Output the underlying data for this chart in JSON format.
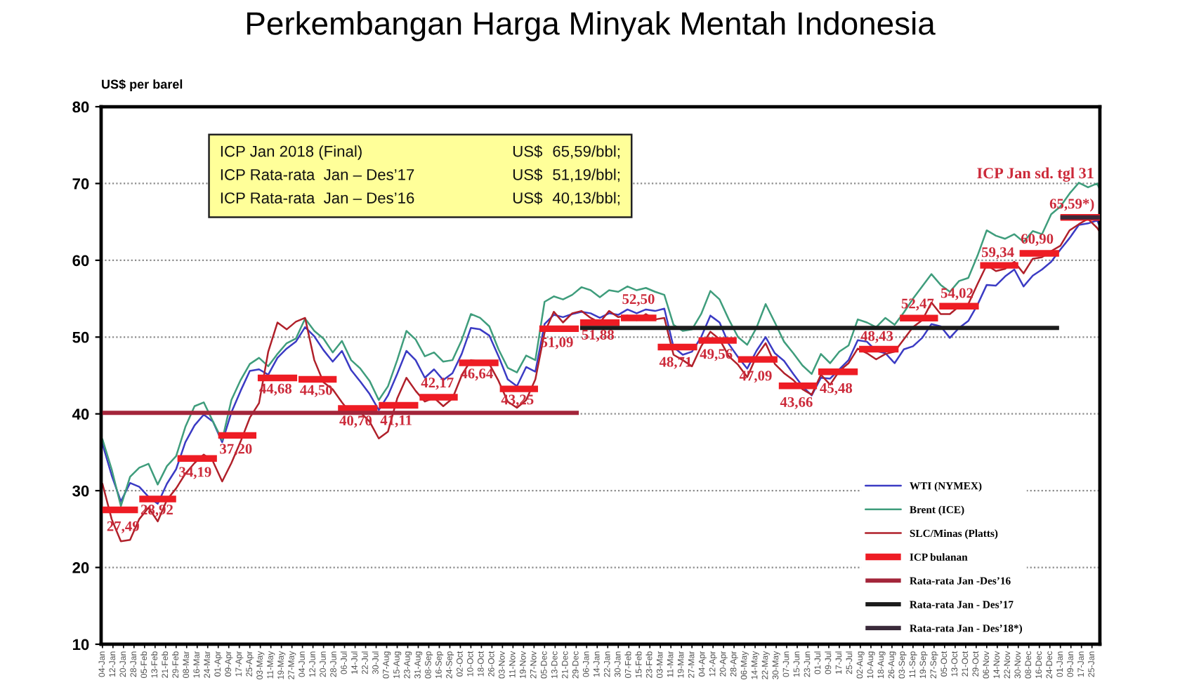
{
  "chart_data": {
    "type": "line",
    "title": "Perkembangan Harga Minyak Mentah Indonesia",
    "ylabel": "US$ per barel",
    "annotations": [
      "ICP Jan 2018 (Final)",
      "US$",
      "65,59/bbl;",
      "ICP Rata-rata  Jan – Des’17",
      "US$",
      "51,19/bbl;",
      "ICP Rata-rata  Jan – Des’16",
      "US$",
      "40,13/bbl;",
      {
        "text": "ICP Jan sd. tgl 31",
        "x": "2018-01-16",
        "y": 65.59
      }
    ],
    "x": [
      "2016-01-04",
      "2016-01-11",
      "2016-01-18",
      "2016-01-25",
      "2016-02-01",
      "2016-02-08",
      "2016-02-15",
      "2016-02-22",
      "2016-02-29",
      "2016-03-07",
      "2016-03-14",
      "2016-03-21",
      "2016-03-28",
      "2016-04-04",
      "2016-04-11",
      "2016-04-18",
      "2016-04-25",
      "2016-05-02",
      "2016-05-09",
      "2016-05-16",
      "2016-05-23",
      "2016-05-30",
      "2016-06-06",
      "2016-06-13",
      "2016-06-20",
      "2016-06-27",
      "2016-07-04",
      "2016-07-11",
      "2016-07-18",
      "2016-07-25",
      "2016-08-01",
      "2016-08-08",
      "2016-08-15",
      "2016-08-22",
      "2016-08-29",
      "2016-09-05",
      "2016-09-12",
      "2016-09-19",
      "2016-09-26",
      "2016-10-03",
      "2016-10-10",
      "2016-10-17",
      "2016-10-24",
      "2016-10-31",
      "2016-11-07",
      "2016-11-14",
      "2016-11-21",
      "2016-11-28",
      "2016-12-05",
      "2016-12-12",
      "2016-12-19",
      "2016-12-26",
      "2017-01-02",
      "2017-01-09",
      "2017-01-16",
      "2017-01-23",
      "2017-01-30",
      "2017-02-06",
      "2017-02-13",
      "2017-02-20",
      "2017-02-27",
      "2017-03-06",
      "2017-03-13",
      "2017-03-20",
      "2017-03-27",
      "2017-04-03",
      "2017-04-10",
      "2017-04-17",
      "2017-04-24",
      "2017-05-01",
      "2017-05-08",
      "2017-05-15",
      "2017-05-22",
      "2017-05-29",
      "2017-06-05",
      "2017-06-12",
      "2017-06-19",
      "2017-06-26",
      "2017-07-03",
      "2017-07-10",
      "2017-07-17",
      "2017-07-24",
      "2017-07-31",
      "2017-08-07",
      "2017-08-14",
      "2017-08-21",
      "2017-08-28",
      "2017-09-04",
      "2017-09-11",
      "2017-09-18",
      "2017-09-25",
      "2017-10-02",
      "2017-10-09",
      "2017-10-16",
      "2017-10-23",
      "2017-10-30",
      "2017-11-06",
      "2017-11-13",
      "2017-11-20",
      "2017-11-27",
      "2017-12-04",
      "2017-12-11",
      "2017-12-18",
      "2017-12-25",
      "2018-01-01",
      "2018-01-08",
      "2018-01-15",
      "2018-01-22",
      "2018-01-29",
      "2018-01-31"
    ],
    "series": [
      {
        "name": "WTI (NYMEX)",
        "color": "#3b3bc4",
        "values": [
          36.1,
          32.0,
          28.6,
          31.0,
          30.5,
          29.2,
          28.3,
          30.9,
          32.8,
          36.3,
          38.5,
          39.9,
          39.0,
          36.3,
          40.2,
          43.0,
          45.6,
          45.8,
          45.1,
          47.3,
          48.5,
          49.4,
          51.3,
          50.1,
          48.3,
          46.8,
          48.2,
          45.7,
          44.2,
          42.6,
          40.5,
          42.4,
          45.2,
          48.2,
          47.0,
          44.7,
          45.8,
          44.4,
          45.3,
          47.8,
          51.2,
          51.0,
          50.2,
          47.5,
          44.5,
          43.6,
          46.1,
          45.5,
          51.7,
          52.9,
          52.6,
          53.0,
          53.3,
          53.1,
          52.5,
          53.1,
          52.9,
          53.6,
          53.1,
          53.6,
          53.4,
          53.7,
          48.7,
          47.7,
          48.1,
          50.0,
          52.8,
          51.9,
          49.1,
          47.4,
          45.9,
          48.2,
          50.0,
          47.9,
          46.9,
          45.2,
          43.6,
          42.4,
          44.7,
          44.6,
          45.8,
          47.0,
          49.6,
          49.4,
          48.2,
          47.9,
          46.6,
          48.4,
          48.8,
          49.9,
          51.7,
          51.4,
          49.9,
          51.2,
          52.1,
          54.2,
          56.8,
          56.7,
          57.9,
          58.8,
          56.6,
          58.0,
          58.8,
          59.8,
          61.4,
          62.9,
          64.6,
          64.8,
          65.2,
          64.4
        ]
      },
      {
        "name": "Brent (ICE)",
        "color": "#3f9d7c",
        "values": [
          36.7,
          32.8,
          28.0,
          31.8,
          33.0,
          33.5,
          30.8,
          33.2,
          34.5,
          38.3,
          41.0,
          41.5,
          39.0,
          36.6,
          41.8,
          44.4,
          46.5,
          47.3,
          46.2,
          47.8,
          49.2,
          49.8,
          52.4,
          50.8,
          49.8,
          48.0,
          49.5,
          47.0,
          45.9,
          44.3,
          41.8,
          43.6,
          47.0,
          50.8,
          49.7,
          47.5,
          48.0,
          46.8,
          47.0,
          49.6,
          53.0,
          52.5,
          51.4,
          48.4,
          46.0,
          45.4,
          47.6,
          47.0,
          54.6,
          55.3,
          54.9,
          55.5,
          56.5,
          56.1,
          55.2,
          56.1,
          55.9,
          56.6,
          56.1,
          56.4,
          55.9,
          55.5,
          51.6,
          50.8,
          51.0,
          53.0,
          56.0,
          54.9,
          52.3,
          50.0,
          49.0,
          51.2,
          54.3,
          51.9,
          49.4,
          47.9,
          46.3,
          45.2,
          47.8,
          46.6,
          48.1,
          48.9,
          52.3,
          51.9,
          51.3,
          52.5,
          51.6,
          53.2,
          55.0,
          56.6,
          58.2,
          56.8,
          55.9,
          57.3,
          57.7,
          60.6,
          63.9,
          63.2,
          62.8,
          63.4,
          62.4,
          63.8,
          63.4,
          66.0,
          67.0,
          68.7,
          70.1,
          69.5,
          70.0,
          69.2
        ]
      },
      {
        "name": "SLC/Minas (Platts)",
        "color": "#b0202a",
        "values": [
          30.9,
          26.3,
          23.4,
          23.6,
          26.3,
          27.8,
          26.0,
          28.8,
          30.3,
          32.2,
          33.6,
          34.7,
          33.8,
          31.2,
          33.6,
          36.4,
          39.5,
          41.4,
          48.1,
          51.9,
          51.0,
          52.0,
          52.5,
          47.0,
          44.1,
          43.2,
          41.5,
          40.0,
          40.2,
          39.0,
          36.8,
          37.7,
          42.0,
          44.7,
          43.0,
          41.6,
          42.1,
          41.0,
          42.0,
          45.0,
          47.0,
          46.8,
          46.5,
          44.3,
          41.6,
          40.8,
          41.8,
          44.5,
          50.6,
          53.3,
          51.9,
          53.1,
          53.4,
          52.5,
          51.9,
          53.4,
          52.6,
          52.8,
          52.2,
          53.0,
          52.3,
          52.5,
          47.7,
          47.0,
          46.2,
          48.8,
          50.7,
          49.7,
          47.5,
          46.4,
          44.8,
          47.5,
          49.2,
          46.5,
          45.3,
          44.4,
          43.2,
          42.5,
          45.1,
          43.8,
          45.6,
          46.6,
          48.5,
          47.9,
          47.1,
          47.8,
          48.1,
          49.7,
          51.3,
          52.2,
          54.5,
          53.0,
          53.0,
          54.0,
          54.3,
          56.9,
          59.4,
          58.6,
          58.9,
          59.8,
          58.3,
          60.2,
          60.4,
          61.2,
          61.9,
          63.9,
          64.7,
          65.4,
          64.2,
          63.7
        ]
      },
      {
        "name": "ICP bulanan",
        "color": "#ee1c24",
        "x": [
          "2016-01-04",
          "2016-01-31",
          null,
          "2016-02-01",
          "2016-02-29",
          null,
          "2016-03-01",
          "2016-03-31",
          null,
          "2016-04-01",
          "2016-04-30",
          null,
          "2016-05-01",
          "2016-05-31",
          null,
          "2016-06-01",
          "2016-06-30",
          null,
          "2016-07-01",
          "2016-07-31",
          null,
          "2016-08-01",
          "2016-08-31",
          null,
          "2016-09-01",
          "2016-09-30",
          null,
          "2016-10-01",
          "2016-10-31",
          null,
          "2016-11-01",
          "2016-11-30",
          null,
          "2016-12-01",
          "2016-12-31",
          null,
          "2017-01-01",
          "2017-01-31",
          null,
          "2017-02-01",
          "2017-02-28",
          null,
          "2017-03-01",
          "2017-03-31",
          null,
          "2017-04-01",
          "2017-04-30",
          null,
          "2017-05-01",
          "2017-05-31",
          null,
          "2017-06-01",
          "2017-06-30",
          null,
          "2017-07-01",
          "2017-07-31",
          null,
          "2017-08-01",
          "2017-08-31",
          null,
          "2017-09-01",
          "2017-09-30",
          null,
          "2017-10-01",
          "2017-10-31",
          null,
          "2017-11-01",
          "2017-11-30",
          null,
          "2017-12-01",
          "2017-12-31",
          null,
          "2018-01-01",
          "2018-01-31",
          null
        ],
        "values": [
          27.49,
          27.49,
          null,
          28.92,
          28.92,
          null,
          34.19,
          34.19,
          null,
          37.2,
          37.2,
          null,
          44.68,
          44.68,
          null,
          44.5,
          44.5,
          null,
          40.7,
          40.7,
          null,
          41.11,
          41.11,
          null,
          42.17,
          42.17,
          null,
          46.64,
          46.64,
          null,
          43.25,
          43.25,
          null,
          51.09,
          51.09,
          null,
          51.88,
          51.88,
          null,
          52.5,
          52.5,
          null,
          48.71,
          48.71,
          null,
          49.56,
          49.56,
          null,
          47.09,
          47.09,
          null,
          43.66,
          43.66,
          null,
          45.48,
          45.48,
          null,
          48.43,
          48.43,
          null,
          52.47,
          52.47,
          null,
          54.02,
          54.02,
          null,
          59.34,
          59.34,
          null,
          60.9,
          60.9,
          null,
          65.59,
          65.59,
          null
        ],
        "value_labels": [
          "27,49",
          null,
          null,
          "28,92",
          null,
          null,
          "34,19",
          null,
          null,
          "37,20",
          null,
          null,
          "44,68",
          null,
          null,
          "44,50",
          null,
          null,
          "40,70",
          null,
          null,
          "41,11",
          null,
          null,
          "42,17",
          null,
          null,
          "46,64",
          null,
          null,
          "43,25",
          null,
          null,
          "51,09",
          null,
          null,
          "51,88",
          null,
          null,
          "52,50",
          null,
          null,
          "48,71",
          null,
          null,
          "49,56",
          null,
          null,
          "47,09",
          null,
          null,
          "43,66",
          null,
          null,
          "45,48",
          null,
          null,
          "48,43",
          null,
          null,
          "52,47",
          null,
          null,
          "54,02",
          null,
          null,
          "59,34",
          null,
          null,
          "60,90",
          null,
          null,
          "65,59*)",
          null,
          null
        ]
      },
      {
        "name": "Rata-rata Jan -Des’16",
        "color": "#a3253a",
        "x": [
          "2016-01-04",
          "2016-12-31"
        ],
        "values": [
          40.13,
          40.13
        ]
      },
      {
        "name": "Rata-rata Jan - Des’17",
        "color": "#1c1c1c",
        "x": [
          "2017-01-01",
          "2017-12-31"
        ],
        "values": [
          51.19,
          51.19
        ]
      },
      {
        "name": "Rata-rata Jan - Des’18*)",
        "color": "#3a2a3a",
        "x": [
          "2018-01-01",
          "2018-01-31"
        ],
        "values": [
          65.59,
          65.59
        ]
      }
    ],
    "xlim": [
      "2016-01-03",
      "2018-01-31"
    ],
    "xticks": [
      {
        "value": "2016-01-04",
        "label": "04-Jan"
      },
      {
        "value": "2016-01-12",
        "label": "12-Jan"
      },
      {
        "value": "2016-01-20",
        "label": "20-Jan"
      },
      {
        "value": "2016-01-28",
        "label": "28-Jan"
      },
      {
        "value": "2016-02-05",
        "label": "05-Feb"
      },
      {
        "value": "2016-02-13",
        "label": "13-Feb"
      },
      {
        "value": "2016-02-21",
        "label": "21-Feb"
      },
      {
        "value": "2016-02-29",
        "label": "29-Feb"
      },
      {
        "value": "2016-03-08",
        "label": "08-Mar"
      },
      {
        "value": "2016-03-16",
        "label": "16-Mar"
      },
      {
        "value": "2016-03-24",
        "label": "24-Mar"
      },
      {
        "value": "2016-04-01",
        "label": "01-Apr"
      },
      {
        "value": "2016-04-09",
        "label": "09-Apr"
      },
      {
        "value": "2016-04-17",
        "label": "17-Apr"
      },
      {
        "value": "2016-04-25",
        "label": "25-Apr"
      },
      {
        "value": "2016-05-03",
        "label": "03-May"
      },
      {
        "value": "2016-05-11",
        "label": "11-May"
      },
      {
        "value": "2016-05-19",
        "label": "19-May"
      },
      {
        "value": "2016-05-27",
        "label": "27-May"
      },
      {
        "value": "2016-06-04",
        "label": "04-Jun"
      },
      {
        "value": "2016-06-12",
        "label": "12-Jun"
      },
      {
        "value": "2016-06-20",
        "label": "20-Jun"
      },
      {
        "value": "2016-06-28",
        "label": "28-Jun"
      },
      {
        "value": "2016-07-06",
        "label": "06-Jul"
      },
      {
        "value": "2016-07-14",
        "label": "14-Jul"
      },
      {
        "value": "2016-07-22",
        "label": "22-Jul"
      },
      {
        "value": "2016-07-30",
        "label": "30-Jul"
      },
      {
        "value": "2016-08-07",
        "label": "07-Aug"
      },
      {
        "value": "2016-08-15",
        "label": "15-Aug"
      },
      {
        "value": "2016-08-23",
        "label": "23-Aug"
      },
      {
        "value": "2016-08-31",
        "label": "31-Aug"
      },
      {
        "value": "2016-09-08",
        "label": "08-Sep"
      },
      {
        "value": "2016-09-16",
        "label": "16-Sep"
      },
      {
        "value": "2016-09-24",
        "label": "24-Sep"
      },
      {
        "value": "2016-10-02",
        "label": "02-Oct"
      },
      {
        "value": "2016-10-10",
        "label": "10-Oct"
      },
      {
        "value": "2016-10-18",
        "label": "18-Oct"
      },
      {
        "value": "2016-10-26",
        "label": "26-Oct"
      },
      {
        "value": "2016-11-03",
        "label": "03-Nov"
      },
      {
        "value": "2016-11-11",
        "label": "11-Nov"
      },
      {
        "value": "2016-11-19",
        "label": "19-Nov"
      },
      {
        "value": "2016-11-27",
        "label": "27-Nov"
      },
      {
        "value": "2016-12-05",
        "label": "05-Dec"
      },
      {
        "value": "2016-12-13",
        "label": "13-Dec"
      },
      {
        "value": "2016-12-21",
        "label": "21-Dec"
      },
      {
        "value": "2016-12-29",
        "label": "29-Dec"
      },
      {
        "value": "2017-01-06",
        "label": "06-Jan"
      },
      {
        "value": "2017-01-14",
        "label": "14-Jan"
      },
      {
        "value": "2017-01-22",
        "label": "22-Jan"
      },
      {
        "value": "2017-01-30",
        "label": "30-Jan"
      },
      {
        "value": "2017-02-07",
        "label": "07-Feb"
      },
      {
        "value": "2017-02-15",
        "label": "15-Feb"
      },
      {
        "value": "2017-02-23",
        "label": "23-Feb"
      },
      {
        "value": "2017-03-03",
        "label": "03-Mar"
      },
      {
        "value": "2017-03-11",
        "label": "11-Mar"
      },
      {
        "value": "2017-03-19",
        "label": "19-Mar"
      },
      {
        "value": "2017-03-27",
        "label": "27-Mar"
      },
      {
        "value": "2017-04-04",
        "label": "04-Apr"
      },
      {
        "value": "2017-04-12",
        "label": "12-Apr"
      },
      {
        "value": "2017-04-20",
        "label": "20-Apr"
      },
      {
        "value": "2017-04-28",
        "label": "28-Apr"
      },
      {
        "value": "2017-05-06",
        "label": "06-May"
      },
      {
        "value": "2017-05-14",
        "label": "14-May"
      },
      {
        "value": "2017-05-22",
        "label": "22-May"
      },
      {
        "value": "2017-05-30",
        "label": "30-May"
      },
      {
        "value": "2017-06-07",
        "label": "07-Jun"
      },
      {
        "value": "2017-06-15",
        "label": "15-Jun"
      },
      {
        "value": "2017-06-23",
        "label": "23-Jun"
      },
      {
        "value": "2017-07-01",
        "label": "01-Jul"
      },
      {
        "value": "2017-07-09",
        "label": "09-Jul"
      },
      {
        "value": "2017-07-17",
        "label": "17-Jul"
      },
      {
        "value": "2017-07-25",
        "label": "25-Jul"
      },
      {
        "value": "2017-08-02",
        "label": "02-Aug"
      },
      {
        "value": "2017-08-10",
        "label": "10-Aug"
      },
      {
        "value": "2017-08-18",
        "label": "18-Aug"
      },
      {
        "value": "2017-08-26",
        "label": "26-Aug"
      },
      {
        "value": "2017-09-03",
        "label": "03-Sep"
      },
      {
        "value": "2017-09-11",
        "label": "11-Sep"
      },
      {
        "value": "2017-09-19",
        "label": "19-Sep"
      },
      {
        "value": "2017-09-27",
        "label": "27-Sep"
      },
      {
        "value": "2017-10-05",
        "label": "05-Oct"
      },
      {
        "value": "2017-10-13",
        "label": "13-Oct"
      },
      {
        "value": "2017-10-21",
        "label": "21-Oct"
      },
      {
        "value": "2017-10-29",
        "label": "29-Oct"
      },
      {
        "value": "2017-11-06",
        "label": "06-Nov"
      },
      {
        "value": "2017-11-14",
        "label": "14-Nov"
      },
      {
        "value": "2017-11-22",
        "label": "22-Nov"
      },
      {
        "value": "2017-11-30",
        "label": "30-Nov"
      },
      {
        "value": "2017-12-08",
        "label": "08-Dec"
      },
      {
        "value": "2017-12-16",
        "label": "16-Dec"
      },
      {
        "value": "2017-12-24",
        "label": "24-Dec"
      },
      {
        "value": "2018-01-01",
        "label": "01-Jan"
      },
      {
        "value": "2018-01-09",
        "label": "09-Jan"
      },
      {
        "value": "2018-01-17",
        "label": "17-Jan"
      },
      {
        "value": "2018-01-25",
        "label": "25-Jan"
      }
    ],
    "ylim": [
      10,
      80
    ],
    "yticks": [
      10,
      20,
      30,
      40,
      50,
      60,
      70,
      80
    ],
    "grid": "y",
    "legend": "bottom right"
  }
}
